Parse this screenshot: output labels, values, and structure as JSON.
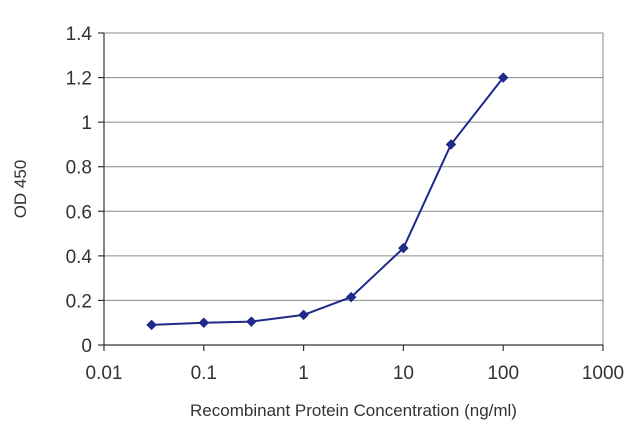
{
  "chart_data": {
    "type": "line",
    "title": "",
    "xlabel": "Recombinant Protein Concentration (ng/ml)",
    "ylabel": "OD 450",
    "x_scale": "log",
    "xlim": [
      0.01,
      1000
    ],
    "ylim": [
      0,
      1.4
    ],
    "x_ticks": [
      "0.01",
      "0.1",
      "1",
      "10",
      "100",
      "1000"
    ],
    "y_ticks": [
      "0",
      "0.2",
      "0.4",
      "0.6",
      "0.8",
      "1",
      "1.2",
      "1.4"
    ],
    "grid": "horizontal",
    "series": [
      {
        "x": [
          0.03,
          0.1,
          0.3,
          1,
          3,
          10,
          30,
          100
        ],
        "y": [
          0.09,
          0.1,
          0.105,
          0.135,
          0.215,
          0.435,
          0.9,
          1.2
        ],
        "color": "#1f2a8a",
        "marker": "diamond"
      }
    ]
  }
}
